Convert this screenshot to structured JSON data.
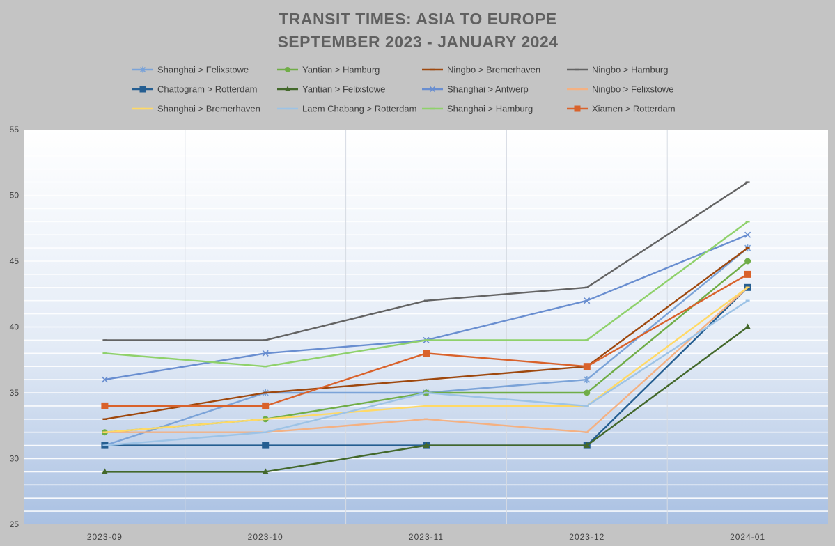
{
  "chart_data": {
    "type": "line",
    "title_lines": [
      "TRANSIT TIMES: ASIA TO EUROPE",
      "SEPTEMBER 2023 - JANUARY 2024"
    ],
    "xlabel": "",
    "ylabel": "",
    "categories": [
      "2023-09",
      "2023-10",
      "2023-11",
      "2023-12",
      "2024-01"
    ],
    "ylim": [
      25,
      55
    ],
    "yticks": [
      25,
      30,
      35,
      40,
      45,
      50,
      55
    ],
    "grid": true,
    "legend_position": "top",
    "series": [
      {
        "name": "Shanghai > Felixstowe",
        "color": "#7ba3d8",
        "marker": "star",
        "values": [
          31,
          35,
          35,
          36,
          46
        ]
      },
      {
        "name": "Yantian > Hamburg",
        "color": "#70ad47",
        "marker": "circle",
        "values": [
          32,
          33,
          35,
          35,
          45
        ]
      },
      {
        "name": "Ningbo > Bremerhaven",
        "color": "#9e480e",
        "marker": "none",
        "values": [
          33,
          35,
          36,
          37,
          46
        ]
      },
      {
        "name": "Ningbo > Hamburg",
        "color": "#636363",
        "marker": "none",
        "values": [
          39,
          39,
          42,
          43,
          51
        ]
      },
      {
        "name": "Chattogram > Rotterdam",
        "color": "#255e91",
        "marker": "square",
        "values": [
          31,
          31,
          31,
          31,
          43
        ]
      },
      {
        "name": "Yantian > Felixstowe",
        "color": "#43682b",
        "marker": "triangle",
        "values": [
          29,
          29,
          31,
          31,
          40
        ]
      },
      {
        "name": "Shanghai > Antwerp",
        "color": "#698ed0",
        "marker": "x",
        "values": [
          36,
          38,
          39,
          42,
          47
        ]
      },
      {
        "name": "Ningbo > Felixstowe",
        "color": "#f4b183",
        "marker": "none",
        "values": [
          32,
          32,
          33,
          32,
          43
        ]
      },
      {
        "name": "Shanghai > Bremerhaven",
        "color": "#ffd966",
        "marker": "none",
        "values": [
          32,
          33,
          34,
          34,
          43
        ]
      },
      {
        "name": "Laem Chabang > Rotterdam",
        "color": "#9dc3e6",
        "marker": "none",
        "values": [
          31,
          32,
          35,
          34,
          42
        ]
      },
      {
        "name": "Shanghai > Hamburg",
        "color": "#8fd16b",
        "marker": "none",
        "values": [
          38,
          37,
          39,
          39,
          48
        ]
      },
      {
        "name": "Xiamen > Rotterdam",
        "color": "#d9622b",
        "marker": "square",
        "values": [
          34,
          34,
          38,
          37,
          44
        ]
      }
    ]
  }
}
